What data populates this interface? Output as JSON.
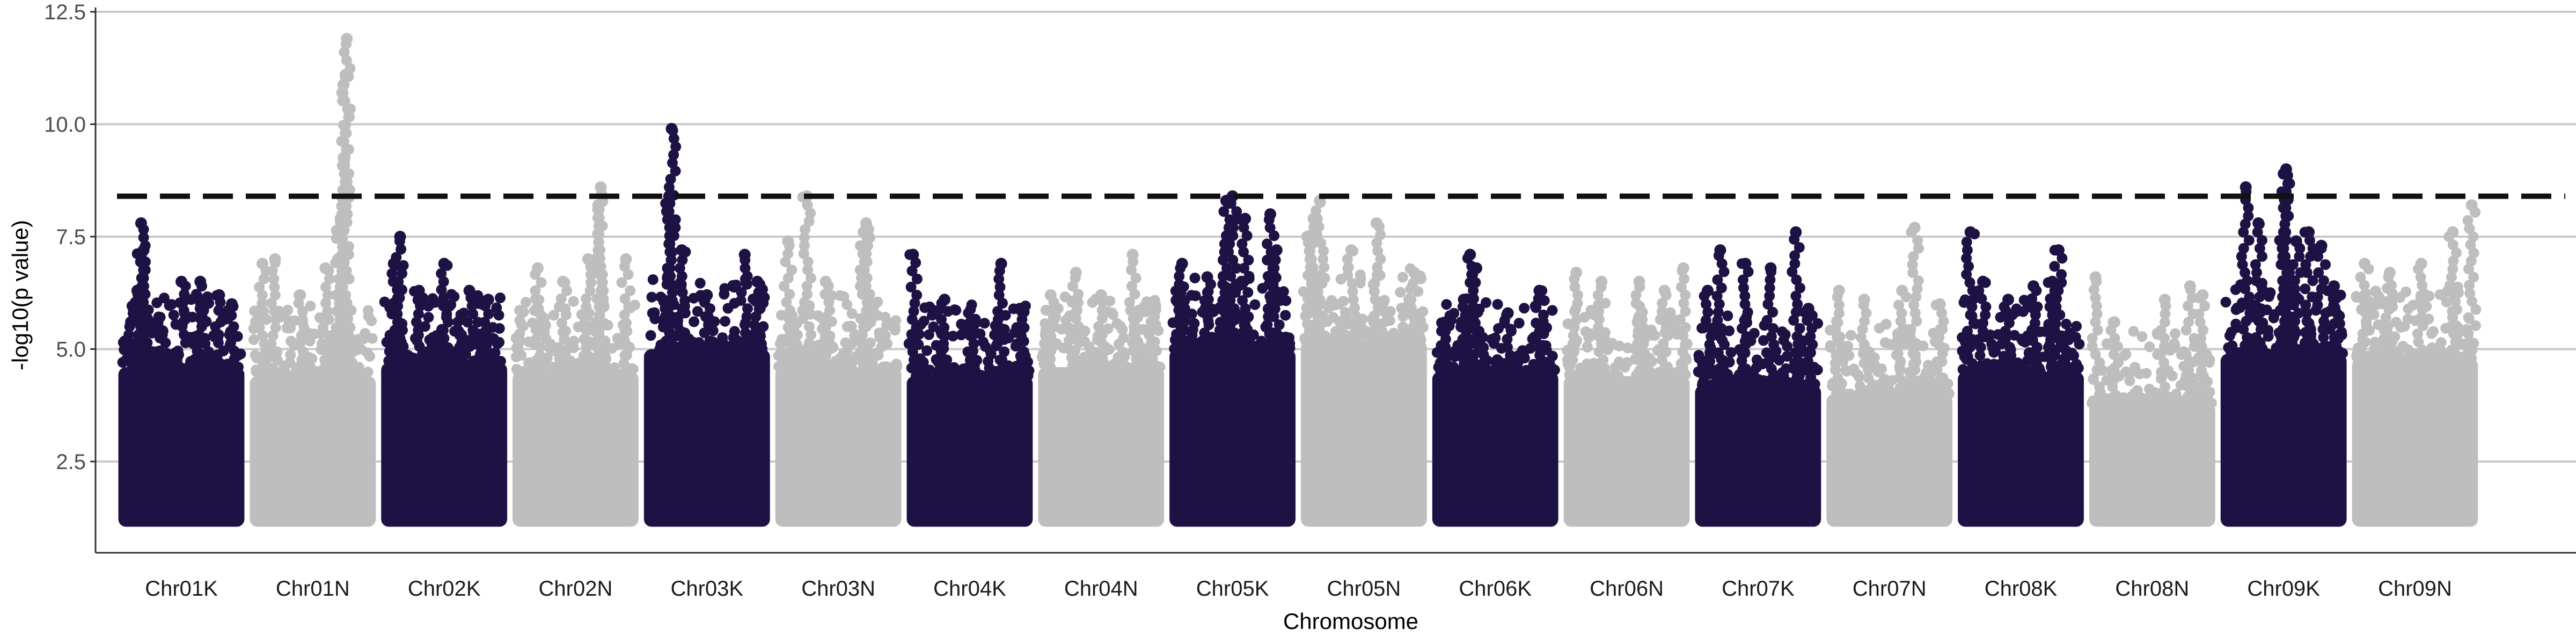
{
  "chart_data": {
    "type": "scatter",
    "subtype": "manhattan",
    "title": "",
    "xlabel": "Chromosome",
    "ylabel": "-log10(p value)",
    "ylim": [
      0.8,
      13
    ],
    "y_ticks": [
      2.5,
      5.0,
      7.5,
      10.0,
      12.5
    ],
    "y_tick_labels": [
      "2.5",
      "5.0",
      "7.5",
      "10.0",
      "12.5"
    ],
    "grid": "horizontal major lines only",
    "legend": "none",
    "threshold": 8.4,
    "colors": {
      "dark": "#1e1245",
      "light": "#bebebe",
      "threshold": "#111111",
      "grid": "#c9c9c9"
    },
    "categories": [
      "Chr01K",
      "Chr01N",
      "Chr02K",
      "Chr02N",
      "Chr03K",
      "Chr03N",
      "Chr04K",
      "Chr04N",
      "Chr05K",
      "Chr05N",
      "Chr06K",
      "Chr06N",
      "Chr07K",
      "Chr07N",
      "Chr08K",
      "Chr08N",
      "Chr09K",
      "Chr09N"
    ],
    "series": [
      {
        "chromosome": "Chr01K",
        "color": "dark",
        "dense_top": 4.6,
        "peaks": [
          [
            0.1,
            5.6
          ],
          [
            0.15,
            6.3
          ],
          [
            0.18,
            7.8
          ],
          [
            0.2,
            7.2
          ],
          [
            0.35,
            5.4
          ],
          [
            0.5,
            6.5
          ],
          [
            0.65,
            6.5
          ],
          [
            0.8,
            6.2
          ],
          [
            0.9,
            6.0
          ]
        ]
      },
      {
        "chromosome": "Chr01N",
        "color": "light",
        "dense_top": 4.4,
        "peaks": [
          [
            0.1,
            6.9
          ],
          [
            0.2,
            7.0
          ],
          [
            0.4,
            6.2
          ],
          [
            0.6,
            6.8
          ],
          [
            0.7,
            7.0
          ],
          [
            0.72,
            7.9
          ],
          [
            0.75,
            9.2
          ],
          [
            0.76,
            11.1
          ],
          [
            0.77,
            11.9
          ]
        ]
      },
      {
        "chromosome": "Chr02K",
        "color": "dark",
        "dense_top": 4.7,
        "peaks": [
          [
            0.1,
            6.9
          ],
          [
            0.15,
            7.5
          ],
          [
            0.3,
            6.3
          ],
          [
            0.5,
            6.9
          ],
          [
            0.7,
            6.3
          ],
          [
            0.85,
            6.1
          ]
        ]
      },
      {
        "chromosome": "Chr02N",
        "color": "light",
        "dense_top": 4.5,
        "peaks": [
          [
            0.2,
            6.8
          ],
          [
            0.4,
            6.5
          ],
          [
            0.6,
            7.0
          ],
          [
            0.68,
            8.2
          ],
          [
            0.7,
            8.6
          ],
          [
            0.9,
            7.0
          ]
        ]
      },
      {
        "chromosome": "Chr03K",
        "color": "dark",
        "dense_top": 5.0,
        "peaks": [
          [
            0.2,
            8.4
          ],
          [
            0.22,
            9.9
          ],
          [
            0.3,
            7.2
          ],
          [
            0.5,
            6.2
          ],
          [
            0.8,
            7.1
          ],
          [
            0.9,
            6.5
          ]
        ]
      },
      {
        "chromosome": "Chr03N",
        "color": "light",
        "dense_top": 4.6,
        "peaks": [
          [
            0.1,
            7.4
          ],
          [
            0.25,
            8.4
          ],
          [
            0.4,
            6.5
          ],
          [
            0.6,
            5.5
          ],
          [
            0.7,
            7.6
          ],
          [
            0.72,
            7.8
          ]
        ]
      },
      {
        "chromosome": "Chr04K",
        "color": "dark",
        "dense_top": 4.4,
        "peaks": [
          [
            0.05,
            7.1
          ],
          [
            0.3,
            6.1
          ],
          [
            0.5,
            5.5
          ],
          [
            0.75,
            6.9
          ],
          [
            0.9,
            5.9
          ]
        ]
      },
      {
        "chromosome": "Chr04N",
        "color": "light",
        "dense_top": 4.6,
        "peaks": [
          [
            0.1,
            6.2
          ],
          [
            0.3,
            6.7
          ],
          [
            0.5,
            6.2
          ],
          [
            0.75,
            7.1
          ],
          [
            0.9,
            5.6
          ]
        ]
      },
      {
        "chromosome": "Chr05K",
        "color": "dark",
        "dense_top": 5.0,
        "peaks": [
          [
            0.1,
            6.9
          ],
          [
            0.3,
            6.6
          ],
          [
            0.45,
            8.3
          ],
          [
            0.5,
            8.4
          ],
          [
            0.6,
            7.9
          ],
          [
            0.8,
            8.0
          ],
          [
            0.85,
            7.2
          ]
        ]
      },
      {
        "chromosome": "Chr05N",
        "color": "light",
        "dense_top": 5.2,
        "peaks": [
          [
            0.05,
            7.5
          ],
          [
            0.1,
            7.9
          ],
          [
            0.15,
            8.3
          ],
          [
            0.4,
            7.2
          ],
          [
            0.6,
            7.8
          ],
          [
            0.9,
            6.7
          ]
        ]
      },
      {
        "chromosome": "Chr06K",
        "color": "dark",
        "dense_top": 4.5,
        "peaks": [
          [
            0.1,
            5.4
          ],
          [
            0.25,
            6.1
          ],
          [
            0.3,
            7.1
          ],
          [
            0.35,
            6.8
          ],
          [
            0.6,
            5.8
          ],
          [
            0.85,
            6.3
          ]
        ]
      },
      {
        "chromosome": "Chr06N",
        "color": "light",
        "dense_top": 4.4,
        "peaks": [
          [
            0.1,
            6.7
          ],
          [
            0.3,
            6.5
          ],
          [
            0.6,
            6.5
          ],
          [
            0.8,
            6.3
          ],
          [
            0.95,
            6.8
          ]
        ]
      },
      {
        "chromosome": "Chr07K",
        "color": "dark",
        "dense_top": 4.2,
        "peaks": [
          [
            0.1,
            6.3
          ],
          [
            0.2,
            7.2
          ],
          [
            0.4,
            6.9
          ],
          [
            0.6,
            6.8
          ],
          [
            0.8,
            7.6
          ],
          [
            0.9,
            5.9
          ]
        ]
      },
      {
        "chromosome": "Chr07N",
        "color": "light",
        "dense_top": 4.0,
        "peaks": [
          [
            0.1,
            6.3
          ],
          [
            0.3,
            6.1
          ],
          [
            0.6,
            6.3
          ],
          [
            0.7,
            7.7
          ],
          [
            0.9,
            6.0
          ]
        ]
      },
      {
        "chromosome": "Chr08K",
        "color": "dark",
        "dense_top": 4.5,
        "peaks": [
          [
            0.1,
            7.6
          ],
          [
            0.2,
            6.5
          ],
          [
            0.4,
            6.1
          ],
          [
            0.6,
            6.4
          ],
          [
            0.75,
            6.5
          ],
          [
            0.8,
            7.2
          ]
        ]
      },
      {
        "chromosome": "Chr08N",
        "color": "light",
        "dense_top": 3.8,
        "peaks": [
          [
            0.05,
            6.6
          ],
          [
            0.2,
            5.6
          ],
          [
            0.6,
            6.1
          ],
          [
            0.8,
            6.4
          ],
          [
            0.9,
            6.2
          ]
        ]
      },
      {
        "chromosome": "Chr09K",
        "color": "dark",
        "dense_top": 4.9,
        "peaks": [
          [
            0.2,
            8.6
          ],
          [
            0.3,
            7.8
          ],
          [
            0.5,
            8.9
          ],
          [
            0.52,
            9.0
          ],
          [
            0.6,
            7.4
          ],
          [
            0.7,
            7.6
          ],
          [
            0.8,
            7.3
          ],
          [
            0.9,
            6.4
          ]
        ]
      },
      {
        "chromosome": "Chr09N",
        "color": "light",
        "dense_top": 4.8,
        "peaks": [
          [
            0.1,
            6.9
          ],
          [
            0.3,
            6.7
          ],
          [
            0.55,
            6.9
          ],
          [
            0.8,
            7.6
          ],
          [
            0.95,
            8.2
          ]
        ]
      }
    ]
  }
}
